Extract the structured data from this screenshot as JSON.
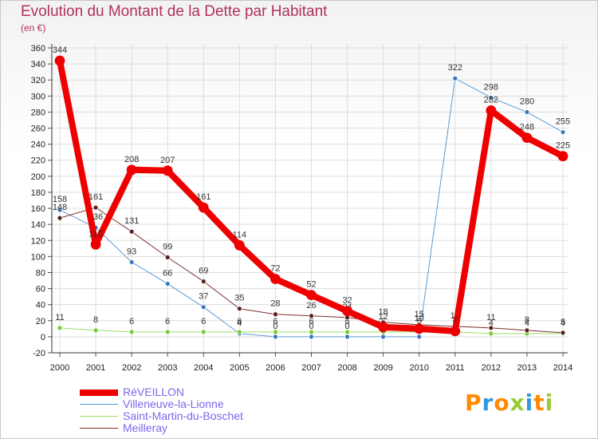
{
  "page": {
    "title": "Evolution du Montant de la Dette par Habitant",
    "subtitle": "(en €)",
    "logo_text": "Proxiti"
  },
  "colors": {
    "title": "#b03060",
    "legend_text": "#7b68ee",
    "grid": "#dddddd",
    "logo_letters": [
      "#ff8c00",
      "#3399dd",
      "#ff8c00",
      "#99cc33",
      "#3399dd",
      "#ff8c00",
      "#99cc33"
    ]
  },
  "chart_data": {
    "type": "line",
    "title": "Evolution du Montant de la Dette par Habitant",
    "ylabel": "(en €)",
    "xlabel": "",
    "ylim": [
      -20,
      360
    ],
    "ytick_step": 20,
    "grid": true,
    "legend_position": "bottom-left",
    "categories": [
      "2000",
      "2001",
      "2002",
      "2003",
      "2004",
      "2005",
      "2006",
      "2007",
      "2008",
      "2009",
      "2010",
      "2011",
      "2012",
      "2013",
      "2014"
    ],
    "yticks": [
      "360",
      "340",
      "320",
      "300",
      "280",
      "260",
      "240",
      "220",
      "200",
      "180",
      "160",
      "140",
      "120",
      "100",
      "80",
      "60",
      "40",
      "20",
      "0",
      "-20"
    ],
    "series": [
      {
        "name": "Villeneuve-la-Lionne",
        "color": "#5b9bd5",
        "marker": "#3a78b8",
        "width": 1,
        "values": [
          158,
          136,
          93,
          66,
          37,
          4,
          0,
          0,
          0,
          0,
          0,
          322,
          298,
          280,
          255
        ],
        "labels": [
          "158",
          "136",
          "93",
          "66",
          "37",
          "4",
          "0",
          "0",
          "0",
          "0",
          "0",
          "322",
          "298",
          "280",
          "255"
        ]
      },
      {
        "name": "Saint-Martin-du-Boschet",
        "color": "#99dd66",
        "marker": "#77cc33",
        "width": 1,
        "values": [
          11,
          8,
          6,
          6,
          6,
          6,
          6,
          6,
          6,
          6,
          6,
          6,
          4,
          4,
          4
        ],
        "labels": [
          "11",
          "8",
          "6",
          "6",
          "6",
          "6",
          "6",
          "6",
          "6",
          "6",
          "6",
          "6",
          "4",
          "4",
          "4"
        ]
      },
      {
        "name": "Meilleray",
        "color": "#7a3030",
        "marker": "#5a1e1e",
        "width": 1,
        "values": [
          148,
          161,
          131,
          99,
          69,
          35,
          28,
          26,
          24,
          18,
          15,
          13,
          11,
          8,
          5
        ],
        "labels": [
          "148",
          "161",
          "131",
          "99",
          "69",
          "35",
          "28",
          "26",
          "24",
          "18",
          "15",
          "13",
          "11",
          "8",
          "5"
        ]
      },
      {
        "name": "RéVEILLON",
        "color": "#ee0000",
        "marker": "#ee0000",
        "width": 8,
        "values": [
          344,
          115,
          208,
          207,
          161,
          114,
          72,
          52,
          32,
          12,
          10,
          7,
          282,
          248,
          225
        ],
        "labels": [
          "344",
          "115",
          "208",
          "207",
          "161",
          "114",
          "72",
          "52",
          "32",
          "12",
          "10",
          "7",
          "282",
          "248",
          "225"
        ]
      }
    ],
    "legend": [
      "RéVEILLON",
      "Villeneuve-la-Lionne",
      "Saint-Martin-du-Boschet",
      "Meilleray"
    ]
  }
}
